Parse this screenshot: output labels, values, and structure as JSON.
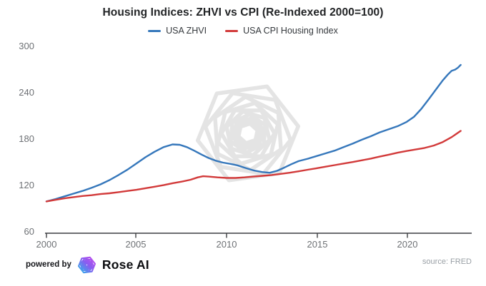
{
  "title": "Housing Indices: ZHVI vs CPI (Re-Indexed 2000=100)",
  "legend": {
    "items": [
      {
        "label": "USA ZHVI",
        "color": "#3577bb"
      },
      {
        "label": "USA CPI Housing Index",
        "color": "#d23a3a"
      }
    ]
  },
  "footer": {
    "powered_by": "powered by",
    "brand": "Rose AI",
    "source": "source: FRED"
  },
  "chart_data": {
    "type": "line",
    "title": "Housing Indices: ZHVI vs CPI (Re-Indexed 2000=100)",
    "xlabel": "",
    "ylabel": "",
    "grid": false,
    "legend_position": "top-center",
    "background": "#ffffff",
    "watermark": "rose-ai-hexagon-spiral",
    "x_axis": {
      "range": [
        2000,
        2023.6
      ],
      "tick_labels": [
        "2000",
        "2005",
        "2010",
        "2015",
        "2020"
      ],
      "tick_values": [
        2000,
        2005,
        2010,
        2015,
        2020
      ]
    },
    "y_axis": {
      "range": [
        60,
        300
      ],
      "tick_labels_top_to_bottom": [
        "300",
        "240",
        "180",
        "120",
        "60"
      ],
      "tick_values": [
        60,
        120,
        180,
        240,
        300
      ]
    },
    "series": [
      {
        "name": "USA ZHVI",
        "color": "#3577bb",
        "points": [
          [
            2000,
            101
          ],
          [
            2000.5,
            104
          ],
          [
            2001,
            107.5
          ],
          [
            2001.5,
            111
          ],
          [
            2002,
            114.5
          ],
          [
            2002.5,
            118.5
          ],
          [
            2003,
            123
          ],
          [
            2003.5,
            128.5
          ],
          [
            2004,
            135
          ],
          [
            2004.5,
            142
          ],
          [
            2005,
            150
          ],
          [
            2005.5,
            158
          ],
          [
            2006,
            165
          ],
          [
            2006.5,
            171
          ],
          [
            2007,
            174.5
          ],
          [
            2007.4,
            174
          ],
          [
            2007.8,
            171
          ],
          [
            2008.2,
            166.5
          ],
          [
            2008.6,
            161.5
          ],
          [
            2009,
            157
          ],
          [
            2009.4,
            153.5
          ],
          [
            2009.8,
            151
          ],
          [
            2010.2,
            149.5
          ],
          [
            2010.6,
            147.5
          ],
          [
            2011,
            144.5
          ],
          [
            2011.5,
            141
          ],
          [
            2012,
            138.8
          ],
          [
            2012.4,
            138
          ],
          [
            2012.8,
            140.5
          ],
          [
            2013.2,
            144.5
          ],
          [
            2013.6,
            149
          ],
          [
            2014,
            153
          ],
          [
            2014.5,
            156
          ],
          [
            2015,
            159.5
          ],
          [
            2015.5,
            163
          ],
          [
            2016,
            166.5
          ],
          [
            2016.5,
            171
          ],
          [
            2017,
            175.5
          ],
          [
            2017.5,
            180.5
          ],
          [
            2018,
            185
          ],
          [
            2018.5,
            190
          ],
          [
            2019,
            194
          ],
          [
            2019.5,
            198
          ],
          [
            2020,
            203.5
          ],
          [
            2020.4,
            210
          ],
          [
            2020.8,
            220
          ],
          [
            2021.2,
            232
          ],
          [
            2021.6,
            244.5
          ],
          [
            2022,
            257
          ],
          [
            2022.3,
            265
          ],
          [
            2022.5,
            269.5
          ],
          [
            2022.7,
            271
          ],
          [
            2022.85,
            273.5
          ],
          [
            2023,
            277
          ]
        ]
      },
      {
        "name": "USA CPI Housing Index",
        "color": "#d23a3a",
        "points": [
          [
            2000,
            101
          ],
          [
            2000.5,
            103
          ],
          [
            2001,
            105
          ],
          [
            2001.5,
            106.5
          ],
          [
            2002,
            108
          ],
          [
            2002.5,
            109
          ],
          [
            2003,
            110.5
          ],
          [
            2003.5,
            111.5
          ],
          [
            2004,
            113
          ],
          [
            2004.5,
            114.5
          ],
          [
            2005,
            116
          ],
          [
            2005.5,
            118
          ],
          [
            2006,
            120
          ],
          [
            2006.5,
            122
          ],
          [
            2007,
            124.5
          ],
          [
            2007.5,
            126.5
          ],
          [
            2008,
            129
          ],
          [
            2008.4,
            132
          ],
          [
            2008.7,
            133.5
          ],
          [
            2009,
            133
          ],
          [
            2009.5,
            132
          ],
          [
            2010,
            131.3
          ],
          [
            2010.5,
            131.3
          ],
          [
            2011,
            132
          ],
          [
            2011.5,
            133
          ],
          [
            2012,
            134
          ],
          [
            2012.5,
            135
          ],
          [
            2013,
            136.5
          ],
          [
            2013.5,
            138
          ],
          [
            2014,
            139.8
          ],
          [
            2014.5,
            141.8
          ],
          [
            2015,
            143.8
          ],
          [
            2015.5,
            145.8
          ],
          [
            2016,
            147.8
          ],
          [
            2016.5,
            149.8
          ],
          [
            2017,
            151.8
          ],
          [
            2017.5,
            154
          ],
          [
            2018,
            156.2
          ],
          [
            2018.5,
            158.8
          ],
          [
            2019,
            161.2
          ],
          [
            2019.5,
            163.8
          ],
          [
            2020,
            166
          ],
          [
            2020.5,
            168
          ],
          [
            2021,
            170
          ],
          [
            2021.5,
            173
          ],
          [
            2022,
            177.5
          ],
          [
            2022.5,
            184
          ],
          [
            2023,
            192
          ]
        ]
      }
    ]
  }
}
